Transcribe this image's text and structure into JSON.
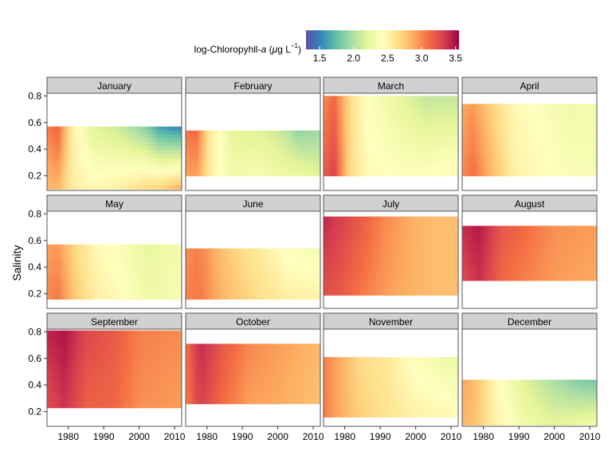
{
  "chart_data": {
    "type": "heatmap",
    "facet_by": "month",
    "y_label": "Salinity",
    "legend": {
      "title_prefix": "log-Chloropyhll-",
      "title_italic": "a",
      "title_units_open": " (",
      "title_units_mu": "μ",
      "title_units_rest": "g L",
      "title_units_exp": "−1",
      "title_units_close": ")",
      "position": "top",
      "range": [
        1.3,
        3.55
      ],
      "ticks": [
        1.5,
        2.0,
        2.5,
        3.0,
        3.5
      ],
      "tick_labels": [
        "1.5",
        "2.0",
        "2.5",
        "3.0",
        "3.5"
      ],
      "palette": [
        "#5e4fa2",
        "#3288bd",
        "#66c2a5",
        "#abdda4",
        "#e6f598",
        "#ffffbf",
        "#fee08b",
        "#fdae61",
        "#f46d43",
        "#d53e4f",
        "#9e0142"
      ]
    },
    "x_axis": {
      "range": [
        1974,
        2012
      ],
      "ticks": [
        1980,
        1990,
        2000,
        2010
      ],
      "tick_labels": [
        "1980",
        "1990",
        "2000",
        "2010"
      ]
    },
    "y_axis": {
      "range": [
        0.09,
        0.82
      ],
      "ticks": [
        0.2,
        0.4,
        0.6,
        0.8
      ],
      "tick_labels": [
        "0.2",
        "0.4",
        "0.6",
        "0.8"
      ]
    },
    "grid": false,
    "year_range": [
      1974,
      2012
    ],
    "panels": [
      {
        "month": "January",
        "salinity_range": [
          0.1,
          0.57
        ],
        "anchors": [
          [
            1974,
            2.95,
            -0.5
          ],
          [
            1977,
            3.05,
            -0.7
          ],
          [
            1981,
            2.55,
            0
          ],
          [
            1987,
            2.3,
            0.6
          ],
          [
            1995,
            2.25,
            1.0
          ],
          [
            2002,
            2.15,
            1.8
          ],
          [
            2006,
            2.0,
            2.4
          ],
          [
            2012,
            2.0,
            2.9
          ]
        ]
      },
      {
        "month": "February",
        "salinity_range": [
          0.2,
          0.54
        ],
        "anchors": [
          [
            1974,
            3.0,
            -0.5
          ],
          [
            1977,
            3.05,
            -0.6
          ],
          [
            1981,
            2.55,
            0
          ],
          [
            1987,
            2.25,
            0.3
          ],
          [
            1995,
            2.25,
            0.5
          ],
          [
            2002,
            2.15,
            0.6
          ],
          [
            2006,
            2.05,
            1.2
          ],
          [
            2012,
            2.05,
            0.7
          ]
        ]
      },
      {
        "month": "March",
        "salinity_range": [
          0.2,
          0.8
        ],
        "anchors": [
          [
            1974,
            3.1,
            0.3
          ],
          [
            1977,
            3.25,
            0.3
          ],
          [
            1981,
            2.7,
            0
          ],
          [
            1986,
            2.45,
            0.1
          ],
          [
            1995,
            2.35,
            0.3
          ],
          [
            2003,
            2.3,
            0.6
          ],
          [
            2012,
            2.35,
            0.7
          ]
        ]
      },
      {
        "month": "April",
        "salinity_range": [
          0.2,
          0.74
        ],
        "anchors": [
          [
            1974,
            2.95,
            0.2
          ],
          [
            1977,
            3.05,
            0.3
          ],
          [
            1983,
            2.75,
            0.2
          ],
          [
            1989,
            2.5,
            0.1
          ],
          [
            1995,
            2.45,
            0.1
          ],
          [
            2003,
            2.35,
            0.15
          ],
          [
            2012,
            2.35,
            0.05
          ]
        ]
      },
      {
        "month": "May",
        "salinity_range": [
          0.16,
          0.57
        ],
        "anchors": [
          [
            1974,
            2.95,
            0.2
          ],
          [
            1977,
            3.0,
            0.3
          ],
          [
            1982,
            2.7,
            0.2
          ],
          [
            1988,
            2.5,
            0.2
          ],
          [
            1995,
            2.4,
            0.2
          ],
          [
            2003,
            2.25,
            0.1
          ],
          [
            2012,
            2.35,
            0.1
          ]
        ]
      },
      {
        "month": "June",
        "salinity_range": [
          0.16,
          0.54
        ],
        "anchors": [
          [
            1974,
            3.0,
            0.1
          ],
          [
            1978,
            3.05,
            0.1
          ],
          [
            1983,
            2.85,
            0.1
          ],
          [
            1989,
            2.7,
            0.2
          ],
          [
            1995,
            2.6,
            0.2
          ],
          [
            2003,
            2.45,
            0.4
          ],
          [
            2012,
            2.4,
            0.5
          ]
        ]
      },
      {
        "month": "July",
        "salinity_range": [
          0.19,
          0.78
        ],
        "anchors": [
          [
            1974,
            3.3,
            -0.3
          ],
          [
            1978,
            3.25,
            -0.2
          ],
          [
            1985,
            3.1,
            -0.2
          ],
          [
            1992,
            2.95,
            -0.1
          ],
          [
            2000,
            2.85,
            0
          ],
          [
            2006,
            2.8,
            0
          ],
          [
            2012,
            2.8,
            0
          ]
        ]
      },
      {
        "month": "August",
        "salinity_range": [
          0.3,
          0.71
        ],
        "anchors": [
          [
            1974,
            3.3,
            -0.3
          ],
          [
            1979,
            3.4,
            -0.2
          ],
          [
            1985,
            3.15,
            -0.2
          ],
          [
            1992,
            3.05,
            -0.2
          ],
          [
            2000,
            2.95,
            -0.1
          ],
          [
            2012,
            2.9,
            -0.1
          ]
        ]
      },
      {
        "month": "September",
        "salinity_range": [
          0.23,
          0.81
        ],
        "anchors": [
          [
            1974,
            3.3,
            -0.3
          ],
          [
            1979,
            3.4,
            -0.2
          ],
          [
            1985,
            3.2,
            -0.2
          ],
          [
            1993,
            3.15,
            -0.1
          ],
          [
            2000,
            3.0,
            -0.1
          ],
          [
            2012,
            2.95,
            -0.1
          ]
        ]
      },
      {
        "month": "October",
        "salinity_range": [
          0.26,
          0.71
        ],
        "anchors": [
          [
            1974,
            3.05,
            -0.1
          ],
          [
            1978,
            3.35,
            -0.2
          ],
          [
            1984,
            3.15,
            -0.2
          ],
          [
            1992,
            2.95,
            -0.2
          ],
          [
            2000,
            2.9,
            -0.1
          ],
          [
            2012,
            2.8,
            -0.1
          ]
        ]
      },
      {
        "month": "November",
        "salinity_range": [
          0.16,
          0.61
        ],
        "anchors": [
          [
            1974,
            3.05,
            0
          ],
          [
            1978,
            2.9,
            0
          ],
          [
            1984,
            2.7,
            0.1
          ],
          [
            1992,
            2.6,
            0.1
          ],
          [
            2000,
            2.45,
            0.3
          ],
          [
            2012,
            2.35,
            0.5
          ]
        ]
      },
      {
        "month": "December",
        "salinity_range": [
          0.1,
          0.44
        ],
        "anchors": [
          [
            1974,
            2.9,
            -0.2
          ],
          [
            1978,
            2.8,
            -0.1
          ],
          [
            1983,
            2.5,
            0.1
          ],
          [
            1991,
            2.2,
            0.4
          ],
          [
            2000,
            2.0,
            0.7
          ],
          [
            2006,
            1.9,
            1.2
          ],
          [
            2012,
            1.85,
            1.6
          ]
        ]
      }
    ]
  }
}
